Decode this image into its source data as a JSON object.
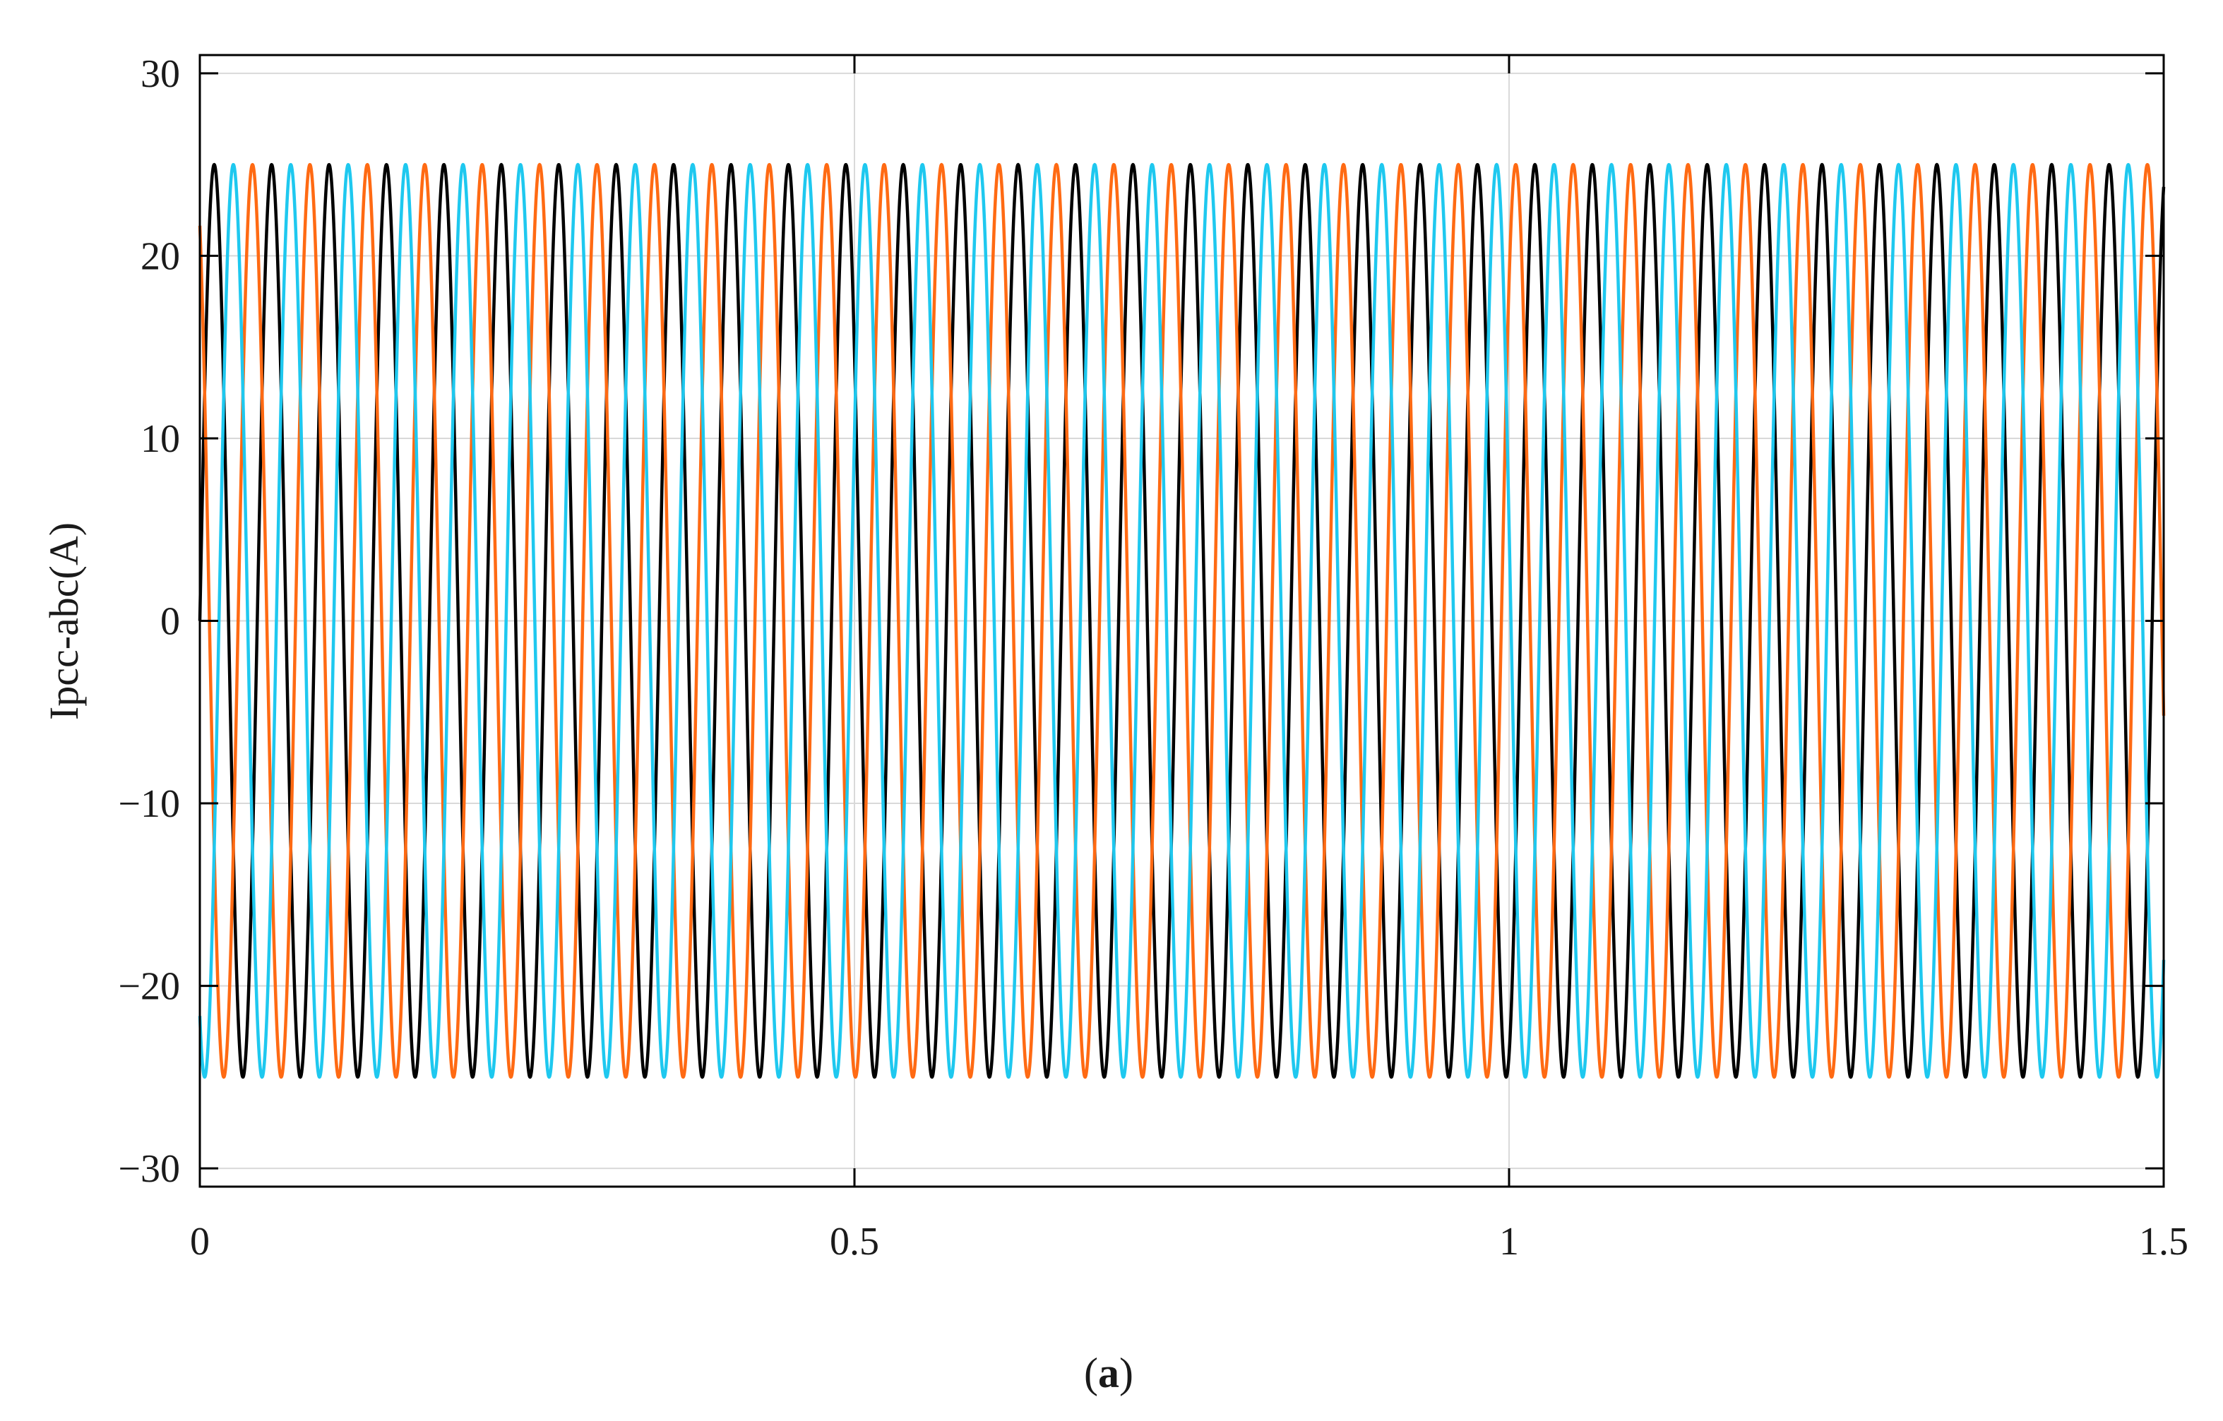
{
  "chart_data": {
    "type": "line",
    "title": "",
    "xlabel": "",
    "ylabel": "Ipcc-abc(A)",
    "xlim": [
      0,
      1.5
    ],
    "ylim": [
      -31,
      31
    ],
    "xticks": [
      0,
      0.5,
      1,
      1.5
    ],
    "xtick_labels": [
      "0",
      "0.5",
      "1",
      "1.5"
    ],
    "yticks": [
      30,
      20,
      10,
      0,
      -10,
      -20,
      -30
    ],
    "ytick_labels": [
      "30",
      "20",
      "10",
      "0",
      "−10",
      "−20",
      "−30"
    ],
    "grid": true,
    "legend": "none",
    "frequency_hz": 22.8,
    "amplitude": 25,
    "series": [
      {
        "color": "#000000",
        "amplitude": 25,
        "phase_deg": 0
      },
      {
        "color": "#ff6a13",
        "amplitude": 25,
        "phase_deg": 120
      },
      {
        "color": "#1ec8ef",
        "amplitude": 25,
        "phase_deg": -120
      }
    ]
  },
  "caption": {
    "open": "(",
    "letter": "a",
    "close": ")"
  }
}
